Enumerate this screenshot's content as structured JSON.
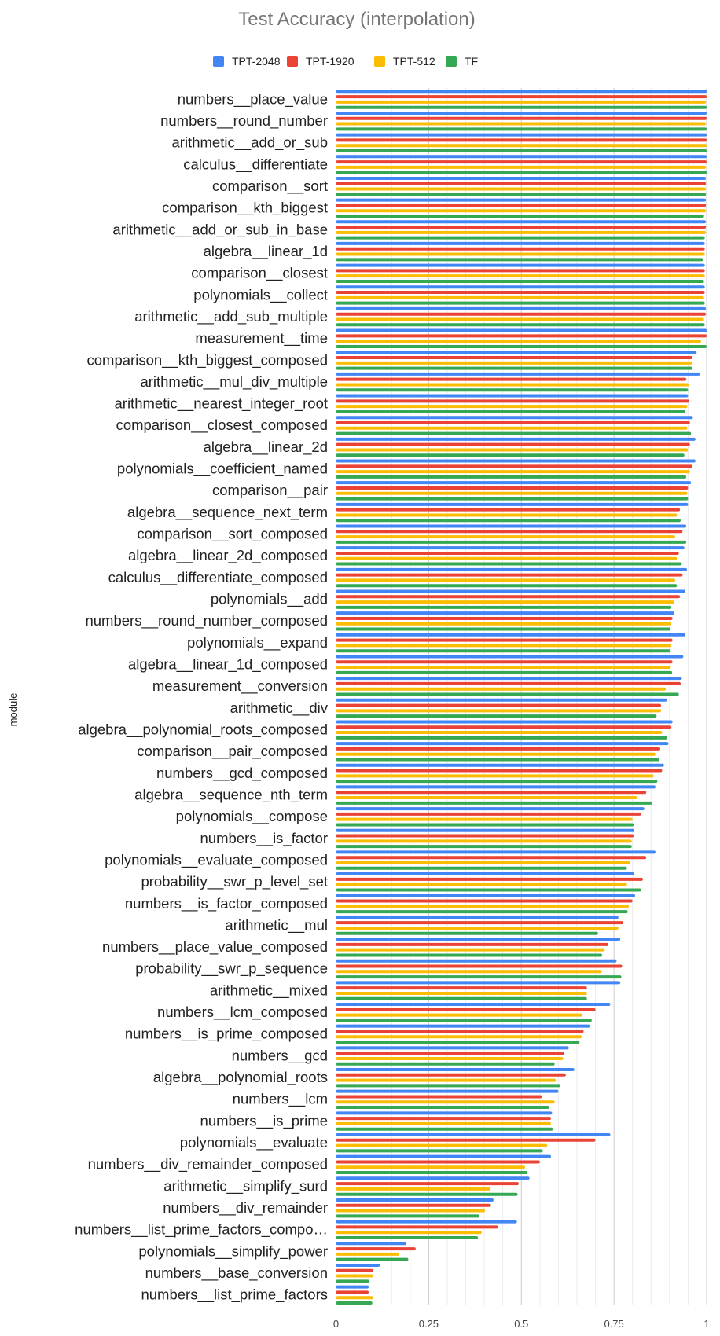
{
  "chart_data": {
    "type": "bar",
    "orientation": "horizontal",
    "title": "Test Accuracy (interpolation)",
    "ylabel": "module",
    "xlabel": "",
    "xlim": [
      0,
      1
    ],
    "xticks": [
      "0",
      "0.25",
      "0.5",
      "0.75",
      "1"
    ],
    "grid": true,
    "legend_position": "top",
    "categories": [
      "numbers__place_value",
      "numbers__round_number",
      "arithmetic__add_or_sub",
      "calculus__differentiate",
      "comparison__sort",
      "comparison__kth_biggest",
      "arithmetic__add_or_sub_in_base",
      "algebra__linear_1d",
      "comparison__closest",
      "polynomials__collect",
      "arithmetic__add_sub_multiple",
      "measurement__time",
      "comparison__kth_biggest_composed",
      "arithmetic__mul_div_multiple",
      "arithmetic__nearest_integer_root",
      "comparison__closest_composed",
      "algebra__linear_2d",
      "polynomials__coefficient_named",
      "comparison__pair",
      "algebra__sequence_next_term",
      "comparison__sort_composed",
      "algebra__linear_2d_composed",
      "calculus__differentiate_composed",
      "polynomials__add",
      "numbers__round_number_composed",
      "polynomials__expand",
      "algebra__linear_1d_composed",
      "measurement__conversion",
      "arithmetic__div",
      "algebra__polynomial_roots_composed",
      "comparison__pair_composed",
      "numbers__gcd_composed",
      "algebra__sequence_nth_term",
      "polynomials__compose",
      "numbers__is_factor",
      "polynomials__evaluate_composed",
      "probability__swr_p_level_set",
      "numbers__is_factor_composed",
      "arithmetic__mul",
      "numbers__place_value_composed",
      "probability__swr_p_sequence",
      "arithmetic__mixed",
      "numbers__lcm_composed",
      "numbers__is_prime_composed",
      "numbers__gcd",
      "algebra__polynomial_roots",
      "numbers__lcm",
      "numbers__is_prime",
      "polynomials__evaluate",
      "numbers__div_remainder_composed",
      "arithmetic__simplify_surd",
      "numbers__div_remainder",
      "numbers__list_prime_factors_compo…",
      "polynomials__simplify_power",
      "numbers__base_conversion",
      "numbers__list_prime_factors"
    ],
    "series": [
      {
        "name": "TPT-2048",
        "color": "#4285F4",
        "values": [
          1.0,
          1.0,
          1.0,
          1.0,
          0.998,
          0.998,
          0.998,
          0.995,
          0.995,
          0.995,
          0.998,
          1.0,
          0.973,
          0.982,
          0.95,
          0.963,
          0.97,
          0.97,
          0.958,
          0.95,
          0.945,
          0.94,
          0.947,
          0.943,
          0.913,
          0.943,
          0.937,
          0.933,
          0.893,
          0.908,
          0.897,
          0.885,
          0.862,
          0.832,
          0.805,
          0.862,
          0.805,
          0.807,
          0.762,
          0.767,
          0.757,
          0.767,
          0.74,
          0.685,
          0.628,
          0.643,
          0.6,
          0.583,
          0.74,
          0.58,
          0.522,
          0.425,
          0.488,
          0.19,
          0.118,
          0.088
        ]
      },
      {
        "name": "TPT-1920",
        "color": "#EA4335",
        "values": [
          1.0,
          1.0,
          1.0,
          1.0,
          0.998,
          0.998,
          0.998,
          0.995,
          0.995,
          0.995,
          0.998,
          1.0,
          0.962,
          0.945,
          0.953,
          0.955,
          0.955,
          0.962,
          0.95,
          0.928,
          0.935,
          0.925,
          0.935,
          0.928,
          0.908,
          0.908,
          0.908,
          0.93,
          0.877,
          0.905,
          0.875,
          0.88,
          0.837,
          0.823,
          0.803,
          0.837,
          0.828,
          0.8,
          0.775,
          0.735,
          0.772,
          0.677,
          0.7,
          0.668,
          0.615,
          0.62,
          0.555,
          0.58,
          0.7,
          0.55,
          0.493,
          0.418,
          0.437,
          0.215,
          0.1,
          0.088
        ]
      },
      {
        "name": "TPT-512",
        "color": "#FBBC04",
        "values": [
          0.998,
          0.998,
          1.0,
          0.998,
          0.998,
          0.998,
          0.998,
          0.995,
          0.995,
          0.993,
          0.993,
          0.985,
          0.96,
          0.952,
          0.948,
          0.948,
          0.95,
          0.955,
          0.948,
          0.92,
          0.915,
          0.92,
          0.915,
          0.912,
          0.905,
          0.905,
          0.903,
          0.89,
          0.877,
          0.88,
          0.862,
          0.857,
          0.813,
          0.8,
          0.798,
          0.793,
          0.785,
          0.79,
          0.762,
          0.725,
          0.717,
          0.677,
          0.665,
          0.663,
          0.613,
          0.593,
          0.59,
          0.58,
          0.57,
          0.51,
          0.417,
          0.402,
          0.393,
          0.17,
          0.1,
          0.1
        ]
      },
      {
        "name": "TF",
        "color": "#34A853",
        "values": [
          1.0,
          1.0,
          1.0,
          1.0,
          0.998,
          0.993,
          0.995,
          0.99,
          0.993,
          0.995,
          0.995,
          1.0,
          0.962,
          0.95,
          0.943,
          0.958,
          0.94,
          0.945,
          0.95,
          0.93,
          0.945,
          0.933,
          0.92,
          0.905,
          0.902,
          0.903,
          0.907,
          0.925,
          0.865,
          0.893,
          0.873,
          0.867,
          0.853,
          0.803,
          0.798,
          0.785,
          0.823,
          0.787,
          0.707,
          0.718,
          0.77,
          0.677,
          0.69,
          0.657,
          0.59,
          0.605,
          0.575,
          0.585,
          0.558,
          0.517,
          0.49,
          0.387,
          0.383,
          0.195,
          0.09,
          0.098
        ]
      }
    ]
  }
}
